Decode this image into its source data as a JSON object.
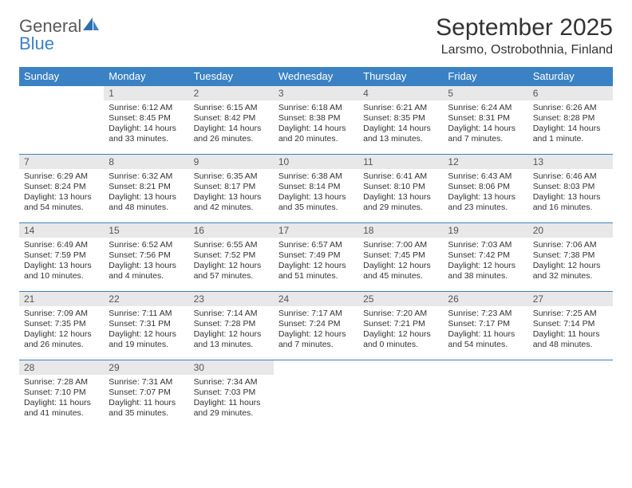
{
  "brand": {
    "part1": "General",
    "part2": "Blue"
  },
  "title": "September 2025",
  "location": "Larsmo, Ostrobothnia, Finland",
  "colors": {
    "header_bg": "#3b82c4",
    "header_fg": "#ffffff",
    "daynum_bg": "#e8e8e8",
    "border": "#3b82c4",
    "text": "#333333",
    "page_bg": "#ffffff"
  },
  "day_headers": [
    "Sunday",
    "Monday",
    "Tuesday",
    "Wednesday",
    "Thursday",
    "Friday",
    "Saturday"
  ],
  "weeks": [
    [
      null,
      {
        "n": "1",
        "sr": "6:12 AM",
        "ss": "8:45 PM",
        "dl": "14 hours and 33 minutes."
      },
      {
        "n": "2",
        "sr": "6:15 AM",
        "ss": "8:42 PM",
        "dl": "14 hours and 26 minutes."
      },
      {
        "n": "3",
        "sr": "6:18 AM",
        "ss": "8:38 PM",
        "dl": "14 hours and 20 minutes."
      },
      {
        "n": "4",
        "sr": "6:21 AM",
        "ss": "8:35 PM",
        "dl": "14 hours and 13 minutes."
      },
      {
        "n": "5",
        "sr": "6:24 AM",
        "ss": "8:31 PM",
        "dl": "14 hours and 7 minutes."
      },
      {
        "n": "6",
        "sr": "6:26 AM",
        "ss": "8:28 PM",
        "dl": "14 hours and 1 minute."
      }
    ],
    [
      {
        "n": "7",
        "sr": "6:29 AM",
        "ss": "8:24 PM",
        "dl": "13 hours and 54 minutes."
      },
      {
        "n": "8",
        "sr": "6:32 AM",
        "ss": "8:21 PM",
        "dl": "13 hours and 48 minutes."
      },
      {
        "n": "9",
        "sr": "6:35 AM",
        "ss": "8:17 PM",
        "dl": "13 hours and 42 minutes."
      },
      {
        "n": "10",
        "sr": "6:38 AM",
        "ss": "8:14 PM",
        "dl": "13 hours and 35 minutes."
      },
      {
        "n": "11",
        "sr": "6:41 AM",
        "ss": "8:10 PM",
        "dl": "13 hours and 29 minutes."
      },
      {
        "n": "12",
        "sr": "6:43 AM",
        "ss": "8:06 PM",
        "dl": "13 hours and 23 minutes."
      },
      {
        "n": "13",
        "sr": "6:46 AM",
        "ss": "8:03 PM",
        "dl": "13 hours and 16 minutes."
      }
    ],
    [
      {
        "n": "14",
        "sr": "6:49 AM",
        "ss": "7:59 PM",
        "dl": "13 hours and 10 minutes."
      },
      {
        "n": "15",
        "sr": "6:52 AM",
        "ss": "7:56 PM",
        "dl": "13 hours and 4 minutes."
      },
      {
        "n": "16",
        "sr": "6:55 AM",
        "ss": "7:52 PM",
        "dl": "12 hours and 57 minutes."
      },
      {
        "n": "17",
        "sr": "6:57 AM",
        "ss": "7:49 PM",
        "dl": "12 hours and 51 minutes."
      },
      {
        "n": "18",
        "sr": "7:00 AM",
        "ss": "7:45 PM",
        "dl": "12 hours and 45 minutes."
      },
      {
        "n": "19",
        "sr": "7:03 AM",
        "ss": "7:42 PM",
        "dl": "12 hours and 38 minutes."
      },
      {
        "n": "20",
        "sr": "7:06 AM",
        "ss": "7:38 PM",
        "dl": "12 hours and 32 minutes."
      }
    ],
    [
      {
        "n": "21",
        "sr": "7:09 AM",
        "ss": "7:35 PM",
        "dl": "12 hours and 26 minutes."
      },
      {
        "n": "22",
        "sr": "7:11 AM",
        "ss": "7:31 PM",
        "dl": "12 hours and 19 minutes."
      },
      {
        "n": "23",
        "sr": "7:14 AM",
        "ss": "7:28 PM",
        "dl": "12 hours and 13 minutes."
      },
      {
        "n": "24",
        "sr": "7:17 AM",
        "ss": "7:24 PM",
        "dl": "12 hours and 7 minutes."
      },
      {
        "n": "25",
        "sr": "7:20 AM",
        "ss": "7:21 PM",
        "dl": "12 hours and 0 minutes."
      },
      {
        "n": "26",
        "sr": "7:23 AM",
        "ss": "7:17 PM",
        "dl": "11 hours and 54 minutes."
      },
      {
        "n": "27",
        "sr": "7:25 AM",
        "ss": "7:14 PM",
        "dl": "11 hours and 48 minutes."
      }
    ],
    [
      {
        "n": "28",
        "sr": "7:28 AM",
        "ss": "7:10 PM",
        "dl": "11 hours and 41 minutes."
      },
      {
        "n": "29",
        "sr": "7:31 AM",
        "ss": "7:07 PM",
        "dl": "11 hours and 35 minutes."
      },
      {
        "n": "30",
        "sr": "7:34 AM",
        "ss": "7:03 PM",
        "dl": "11 hours and 29 minutes."
      },
      null,
      null,
      null,
      null
    ]
  ],
  "labels": {
    "sunrise": "Sunrise:",
    "sunset": "Sunset:",
    "daylight": "Daylight:"
  }
}
